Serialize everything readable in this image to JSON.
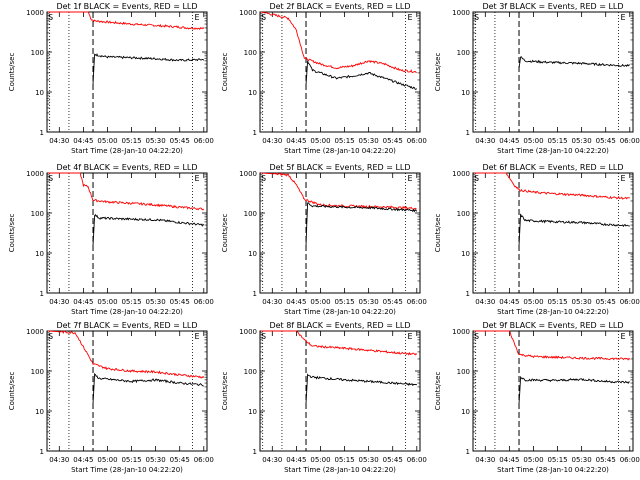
{
  "chart_data": [
    {
      "type": "line",
      "title": "Det 1f BLACK = Events, RED = LLD",
      "xlabel": "Start Time (28-Jan-10 04:22:20)",
      "ylabel": "Counts/sec",
      "ylim": [
        1,
        1000
      ],
      "yscale": "log",
      "y_ticks": [
        1,
        10,
        100,
        1000
      ],
      "x_ticks": [
        "04:30",
        "04:45",
        "05:00",
        "05:15",
        "05:30",
        "05:45",
        "06:00"
      ],
      "markers": [
        "S",
        "E"
      ],
      "series": [
        {
          "color": "#ff0000",
          "x": [
            "04:23",
            "04:40",
            "04:48",
            "04:50",
            "04:52",
            "05:00",
            "05:15",
            "05:30",
            "05:45",
            "05:50",
            "06:00"
          ],
          "values": [
            1000,
            1000,
            1000,
            650,
            600,
            560,
            500,
            460,
            420,
            400,
            390
          ]
        },
        {
          "color": "#000000",
          "x": [
            "04:51",
            "04:52",
            "04:53",
            "05:00",
            "05:15",
            "05:30",
            "05:45",
            "06:00"
          ],
          "values": [
            15,
            90,
            85,
            75,
            72,
            68,
            62,
            65
          ]
        }
      ]
    },
    {
      "type": "line",
      "title": "Det 2f BLACK = Events, RED = LLD",
      "xlabel": "Start Time (28-Jan-10 04:22:20)",
      "ylabel": "Counts/sec",
      "ylim": [
        1,
        1000
      ],
      "yscale": "log",
      "y_ticks": [
        1,
        10,
        100,
        1000
      ],
      "x_ticks": [
        "04:30",
        "04:45",
        "05:00",
        "05:15",
        "05:30",
        "05:45",
        "06:00"
      ],
      "markers": [
        "S",
        "E"
      ],
      "series": [
        {
          "color": "#ff0000",
          "x": [
            "04:23",
            "04:40",
            "04:45",
            "04:50",
            "05:00",
            "05:10",
            "05:20",
            "05:30",
            "05:40",
            "05:50",
            "06:00"
          ],
          "values": [
            1000,
            700,
            350,
            70,
            50,
            40,
            45,
            60,
            50,
            35,
            32
          ]
        },
        {
          "color": "#000000",
          "x": [
            "04:51",
            "04:52",
            "04:55",
            "05:00",
            "05:10",
            "05:20",
            "05:30",
            "05:40",
            "05:50",
            "06:00"
          ],
          "values": [
            15,
            60,
            35,
            30,
            22,
            25,
            30,
            22,
            16,
            12
          ]
        }
      ]
    },
    {
      "type": "line",
      "title": "Det 3f BLACK = Events, RED = LLD",
      "xlabel": "Start Time (28-Jan-10 04:22:20)",
      "ylabel": "Counts/sec",
      "ylim": [
        1,
        1000
      ],
      "yscale": "log",
      "y_ticks": [
        1,
        10,
        100,
        1000
      ],
      "x_ticks": [
        "04:30",
        "04:45",
        "05:00",
        "05:15",
        "05:30",
        "05:45",
        "06:00"
      ],
      "markers": [
        "S",
        "E"
      ],
      "series": [
        {
          "color": "#000000",
          "x": [
            "04:51",
            "04:52",
            "04:55",
            "05:10",
            "05:30",
            "05:45",
            "06:00"
          ],
          "values": [
            40,
            75,
            60,
            55,
            52,
            48,
            45
          ]
        }
      ]
    },
    {
      "type": "line",
      "title": "Det 4f BLACK = Events, RED = LLD",
      "xlabel": "Start Time (28-Jan-10 04:22:20)",
      "ylabel": "Counts/sec",
      "ylim": [
        1,
        1000
      ],
      "yscale": "log",
      "y_ticks": [
        1,
        10,
        100,
        1000
      ],
      "x_ticks": [
        "04:30",
        "04:45",
        "05:00",
        "05:15",
        "05:30",
        "05:45",
        "06:00"
      ],
      "markers": [
        "S",
        "E"
      ],
      "series": [
        {
          "color": "#ff0000",
          "x": [
            "04:23",
            "04:43",
            "04:45",
            "04:48",
            "04:51",
            "05:00",
            "05:15",
            "05:30",
            "05:45",
            "06:00"
          ],
          "values": [
            1000,
            1000,
            500,
            450,
            210,
            190,
            175,
            160,
            140,
            125
          ]
        },
        {
          "color": "#000000",
          "x": [
            "04:51",
            "04:52",
            "04:55",
            "05:15",
            "05:30",
            "05:45",
            "06:00"
          ],
          "values": [
            15,
            90,
            75,
            70,
            68,
            58,
            50
          ]
        }
      ]
    },
    {
      "type": "line",
      "title": "Det 5f BLACK = Events, RED = LLD",
      "xlabel": "Start Time (28-Jan-10 04:22:20)",
      "ylabel": "Counts/sec",
      "ylim": [
        1,
        1000
      ],
      "yscale": "log",
      "y_ticks": [
        1,
        10,
        100,
        1000
      ],
      "x_ticks": [
        "04:30",
        "04:45",
        "05:00",
        "05:15",
        "05:30",
        "05:45",
        "06:00"
      ],
      "markers": [
        "S",
        "E"
      ],
      "series": [
        {
          "color": "#ff0000",
          "x": [
            "04:23",
            "04:40",
            "04:45",
            "04:50",
            "05:00",
            "05:15",
            "05:30",
            "05:45",
            "06:00"
          ],
          "values": [
            1000,
            900,
            500,
            220,
            160,
            150,
            145,
            140,
            130
          ]
        },
        {
          "color": "#000000",
          "x": [
            "04:51",
            "04:52",
            "04:55",
            "05:15",
            "05:30",
            "05:45",
            "06:00"
          ],
          "values": [
            15,
            180,
            150,
            140,
            135,
            125,
            115
          ]
        }
      ]
    },
    {
      "type": "line",
      "title": "Det 6f BLACK = Events, RED = LLD",
      "xlabel": "Start Time (28-Jan-10 04:22:20)",
      "ylabel": "Counts/sec",
      "ylim": [
        1,
        1000
      ],
      "yscale": "log",
      "y_ticks": [
        1,
        10,
        100,
        1000
      ],
      "x_ticks": [
        "04:30",
        "04:45",
        "05:00",
        "05:15",
        "05:30",
        "05:45",
        "06:00"
      ],
      "markers": [
        "S",
        "E"
      ],
      "series": [
        {
          "color": "#ff0000",
          "x": [
            "04:23",
            "04:43",
            "04:48",
            "04:51",
            "05:00",
            "05:15",
            "05:30",
            "05:45",
            "06:00"
          ],
          "values": [
            1000,
            1000,
            500,
            380,
            330,
            300,
            280,
            250,
            230
          ]
        },
        {
          "color": "#000000",
          "x": [
            "04:51",
            "04:52",
            "04:55",
            "05:15",
            "05:30",
            "05:45",
            "06:00"
          ],
          "values": [
            15,
            90,
            65,
            60,
            58,
            52,
            48
          ]
        }
      ]
    },
    {
      "type": "line",
      "title": "Det 7f BLACK = Events, RED = LLD",
      "xlabel": "Start Time (28-Jan-10 04:22:20)",
      "ylabel": "Counts/sec",
      "ylim": [
        1,
        1000
      ],
      "yscale": "log",
      "y_ticks": [
        1,
        10,
        100,
        1000
      ],
      "x_ticks": [
        "04:30",
        "04:45",
        "05:00",
        "05:15",
        "05:30",
        "05:45",
        "06:00"
      ],
      "markers": [
        "S",
        "E"
      ],
      "series": [
        {
          "color": "#ff0000",
          "x": [
            "04:23",
            "04:40",
            "04:45",
            "04:48",
            "04:51",
            "05:00",
            "05:15",
            "05:30",
            "05:45",
            "06:00"
          ],
          "values": [
            1000,
            900,
            400,
            250,
            150,
            115,
            100,
            95,
            80,
            70
          ]
        },
        {
          "color": "#000000",
          "x": [
            "04:51",
            "04:52",
            "04:55",
            "05:15",
            "05:30",
            "05:45",
            "06:00"
          ],
          "values": [
            15,
            80,
            65,
            55,
            60,
            50,
            45
          ]
        }
      ]
    },
    {
      "type": "line",
      "title": "Det 8f BLACK = Events, RED = LLD",
      "xlabel": "Start Time (28-Jan-10 04:22:20)",
      "ylabel": "Counts/sec",
      "ylim": [
        1,
        1000
      ],
      "yscale": "log",
      "y_ticks": [
        1,
        10,
        100,
        1000
      ],
      "x_ticks": [
        "04:30",
        "04:45",
        "05:00",
        "05:15",
        "05:30",
        "05:45",
        "06:00"
      ],
      "markers": [
        "S",
        "E"
      ],
      "series": [
        {
          "color": "#ff0000",
          "x": [
            "04:23",
            "04:45",
            "04:50",
            "04:55",
            "05:15",
            "05:30",
            "05:45",
            "06:00"
          ],
          "values": [
            1000,
            1000,
            600,
            420,
            370,
            330,
            290,
            260
          ]
        },
        {
          "color": "#000000",
          "x": [
            "04:51",
            "04:52",
            "04:55",
            "05:15",
            "05:30",
            "05:45",
            "06:00"
          ],
          "values": [
            15,
            80,
            70,
            60,
            55,
            50,
            45
          ]
        }
      ]
    },
    {
      "type": "line",
      "title": "Det 9f BLACK = Events, RED = LLD",
      "xlabel": "Start Time (28-Jan-10 04:22:20)",
      "ylabel": "Counts/sec",
      "ylim": [
        1,
        1000
      ],
      "yscale": "log",
      "y_ticks": [
        1,
        10,
        100,
        1000
      ],
      "x_ticks": [
        "04:30",
        "04:45",
        "05:00",
        "05:15",
        "05:30",
        "05:45",
        "06:00"
      ],
      "markers": [
        "S",
        "E"
      ],
      "series": [
        {
          "color": "#ff0000",
          "x": [
            "04:23",
            "04:45",
            "04:48",
            "04:51",
            "05:00",
            "05:15",
            "05:30",
            "05:45",
            "06:00"
          ],
          "values": [
            1000,
            1000,
            500,
            260,
            230,
            220,
            210,
            205,
            200
          ]
        },
        {
          "color": "#000000",
          "x": [
            "04:51",
            "04:52",
            "04:55",
            "05:15",
            "05:30",
            "05:45",
            "06:00"
          ],
          "values": [
            15,
            70,
            60,
            58,
            62,
            55,
            52
          ]
        }
      ]
    }
  ]
}
